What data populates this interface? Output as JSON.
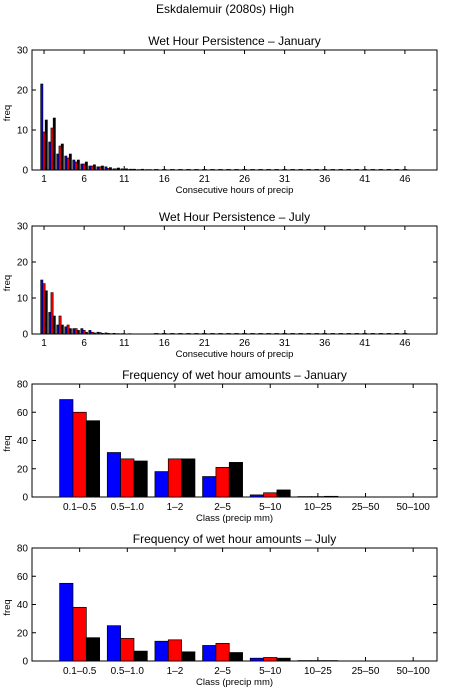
{
  "figure_title": "Eskdalemuir (2080s) High",
  "chart_data": [
    {
      "type": "bar",
      "title": "Wet Hour Persistence – January",
      "xlabel": "Consecutive hours of precip",
      "ylabel": "freq",
      "ylim": [
        0,
        30
      ],
      "yticks": [
        0,
        10,
        20,
        30
      ],
      "xticks": [
        1,
        6,
        11,
        16,
        21,
        26,
        31,
        36,
        41,
        46
      ],
      "x": [
        1,
        2,
        3,
        4,
        5,
        6,
        7,
        8,
        9,
        10,
        11,
        12,
        13,
        14
      ],
      "series": [
        {
          "color": "#0000ff",
          "values": [
            21.5,
            7,
            4,
            3.5,
            2.5,
            1.5,
            1,
            0.8,
            0.8,
            0.3,
            0.3,
            0.2,
            0.1,
            0.1
          ]
        },
        {
          "color": "#ff0000",
          "values": [
            9.5,
            10.5,
            6,
            3,
            2,
            1.5,
            1,
            0.8,
            0.4,
            0.3,
            0.2,
            0.2,
            0.1,
            0.1
          ]
        },
        {
          "color": "#000000",
          "values": [
            12.5,
            13,
            6.5,
            4,
            2.5,
            2,
            1.3,
            1,
            0.6,
            0.5,
            0.3,
            0.2,
            0.2,
            0.1
          ]
        }
      ],
      "grid": false,
      "legend": "none"
    },
    {
      "type": "bar",
      "title": "Wet Hour Persistence – July",
      "xlabel": "Consecutive hours of precip",
      "ylabel": "freq",
      "ylim": [
        0,
        30
      ],
      "yticks": [
        0,
        10,
        20,
        30
      ],
      "xticks": [
        1,
        6,
        11,
        16,
        21,
        26,
        31,
        36,
        41,
        46
      ],
      "x": [
        1,
        2,
        3,
        4,
        5,
        6,
        7,
        8,
        9,
        10,
        11,
        12
      ],
      "series": [
        {
          "color": "#0000ff",
          "values": [
            15,
            6,
            2.5,
            2,
            1.5,
            1.5,
            1,
            0.5,
            0.3,
            0.2,
            0.1,
            0.1
          ]
        },
        {
          "color": "#ff0000",
          "values": [
            14,
            11.5,
            5,
            2.5,
            1.5,
            1,
            0.5,
            0.4,
            0.2,
            0.1,
            0.1,
            0
          ]
        },
        {
          "color": "#000000",
          "values": [
            12,
            5,
            2.5,
            1.5,
            1,
            0.5,
            0.3,
            0.2,
            0.1,
            0.1,
            0,
            0
          ]
        }
      ],
      "grid": false,
      "legend": "none"
    },
    {
      "type": "bar",
      "title": "Frequency of wet hour amounts – January",
      "xlabel": "Class (precip mm)",
      "ylabel": "freq",
      "ylim": [
        0,
        80
      ],
      "yticks": [
        0,
        20,
        40,
        60,
        80
      ],
      "categories": [
        "0.1–0.5",
        "0.5–1.0",
        "1–2",
        "2–5",
        "5–10",
        "10–25",
        "25–50",
        "50–100"
      ],
      "series": [
        {
          "color": "#0000ff",
          "values": [
            69,
            31.5,
            18,
            14.5,
            1.5,
            0.3,
            0,
            0
          ]
        },
        {
          "color": "#ff0000",
          "values": [
            60,
            27,
            27,
            21,
            3,
            0.3,
            0,
            0
          ]
        },
        {
          "color": "#000000",
          "values": [
            54,
            25.5,
            27,
            24.5,
            5,
            0.5,
            0,
            0
          ]
        }
      ],
      "grid": false,
      "legend": "none"
    },
    {
      "type": "bar",
      "title": "Frequency of wet hour amounts – July",
      "xlabel": "Class (precip mm)",
      "ylabel": "freq",
      "ylim": [
        0,
        80
      ],
      "yticks": [
        0,
        20,
        40,
        60,
        80
      ],
      "categories": [
        "0.1–0.5",
        "0.5–1.0",
        "1–2",
        "2–5",
        "5–10",
        "10–25",
        "25–50",
        "50–100"
      ],
      "series": [
        {
          "color": "#0000ff",
          "values": [
            55,
            25,
            14,
            11,
            2,
            0.3,
            0,
            0
          ]
        },
        {
          "color": "#ff0000",
          "values": [
            38,
            16,
            15,
            12.5,
            2.5,
            0.3,
            0,
            0
          ]
        },
        {
          "color": "#000000",
          "values": [
            16.5,
            7,
            6.5,
            6,
            2,
            0.3,
            0,
            0
          ]
        }
      ],
      "grid": false,
      "legend": "none"
    }
  ]
}
